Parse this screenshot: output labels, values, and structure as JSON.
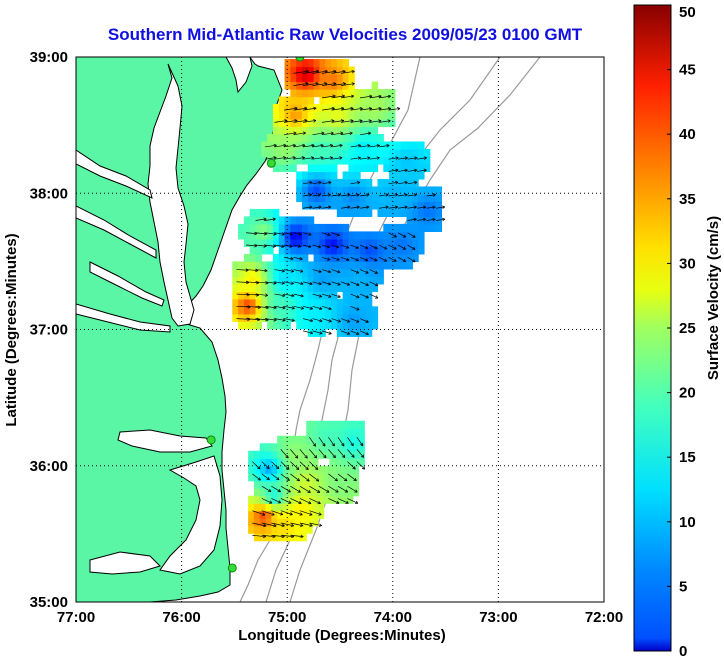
{
  "chart_data": {
    "type": "heatmap",
    "title": "Southern Mid-Atlantic Raw Velocities 2009/05/23 0100 GMT",
    "xlabel": "Longitude (Degrees:Minutes)",
    "ylabel": "Latitude (Degrees:Minutes)",
    "x_ticks": [
      {
        "value": -77,
        "label": "77:00"
      },
      {
        "value": -76,
        "label": "76:00"
      },
      {
        "value": -75,
        "label": "75:00"
      },
      {
        "value": -74,
        "label": "74:00"
      },
      {
        "value": -73,
        "label": "73:00"
      },
      {
        "value": -72,
        "label": "72:00"
      }
    ],
    "y_ticks": [
      {
        "value": 35,
        "label": "35:00"
      },
      {
        "value": 36,
        "label": "36:00"
      },
      {
        "value": 37,
        "label": "37:00"
      },
      {
        "value": 38,
        "label": "38:00"
      },
      {
        "value": 39,
        "label": "39:00"
      }
    ],
    "xlim": [
      -77,
      -72
    ],
    "ylim": [
      35,
      39
    ],
    "grid": "dotted",
    "colorbar": {
      "label": "Surface Velocity (cm/s)",
      "range": [
        0,
        50
      ],
      "ticks": [
        0,
        5,
        10,
        15,
        20,
        25,
        30,
        35,
        40,
        45,
        50
      ],
      "colormap": "jet"
    },
    "colors": {
      "land": "#5af5a5",
      "coastline": "#000000",
      "isobath": "#9a9a9a",
      "station": "#33dd33",
      "title": "#1010e0",
      "grid": "#000000",
      "vectors": "#000000"
    },
    "stations": [
      {
        "lon": -74.88,
        "lat": 39.0
      },
      {
        "lon": -75.15,
        "lat": 38.22
      },
      {
        "lon": -75.72,
        "lat": 36.19
      },
      {
        "lon": -75.52,
        "lat": 35.25
      }
    ],
    "velocity_regions": [
      {
        "region": "northern",
        "samples": [
          {
            "lon": -74.85,
            "lat": 38.85,
            "speed": 46
          },
          {
            "lon": -74.6,
            "lat": 38.8,
            "speed": 38
          },
          {
            "lon": -74.95,
            "lat": 38.55,
            "speed": 36
          },
          {
            "lon": -74.55,
            "lat": 38.55,
            "speed": 30
          },
          {
            "lon": -74.2,
            "lat": 38.6,
            "speed": 27
          },
          {
            "lon": -75.05,
            "lat": 38.3,
            "speed": 26
          },
          {
            "lon": -74.7,
            "lat": 38.3,
            "speed": 22
          },
          {
            "lon": -74.3,
            "lat": 38.3,
            "speed": 18
          },
          {
            "lon": -73.9,
            "lat": 38.2,
            "speed": 16
          },
          {
            "lon": -74.75,
            "lat": 38.0,
            "speed": 10
          },
          {
            "lon": -74.4,
            "lat": 37.95,
            "speed": 13
          },
          {
            "lon": -74.0,
            "lat": 37.95,
            "speed": 15
          },
          {
            "lon": -73.7,
            "lat": 37.85,
            "speed": 12
          },
          {
            "lon": -75.25,
            "lat": 37.7,
            "speed": 25
          },
          {
            "lon": -74.95,
            "lat": 37.65,
            "speed": 6
          },
          {
            "lon": -74.6,
            "lat": 37.6,
            "speed": 7
          },
          {
            "lon": -74.25,
            "lat": 37.55,
            "speed": 10
          },
          {
            "lon": -73.95,
            "lat": 37.6,
            "speed": 12
          },
          {
            "lon": -75.35,
            "lat": 37.35,
            "speed": 32
          },
          {
            "lon": -75.05,
            "lat": 37.35,
            "speed": 17
          },
          {
            "lon": -74.7,
            "lat": 37.35,
            "speed": 14
          },
          {
            "lon": -74.35,
            "lat": 37.35,
            "speed": 15
          },
          {
            "lon": -75.4,
            "lat": 37.15,
            "speed": 40
          },
          {
            "lon": -75.1,
            "lat": 37.15,
            "speed": 22
          },
          {
            "lon": -74.75,
            "lat": 37.1,
            "speed": 18
          },
          {
            "lon": -74.4,
            "lat": 37.05,
            "speed": 14
          }
        ]
      },
      {
        "region": "southern",
        "samples": [
          {
            "lon": -74.65,
            "lat": 36.2,
            "speed": 22
          },
          {
            "lon": -74.4,
            "lat": 36.15,
            "speed": 20
          },
          {
            "lon": -74.95,
            "lat": 36.05,
            "speed": 26
          },
          {
            "lon": -75.2,
            "lat": 35.95,
            "speed": 15
          },
          {
            "lon": -74.85,
            "lat": 35.85,
            "speed": 29
          },
          {
            "lon": -74.55,
            "lat": 35.85,
            "speed": 25
          },
          {
            "lon": -75.15,
            "lat": 35.75,
            "speed": 20
          },
          {
            "lon": -74.9,
            "lat": 35.65,
            "speed": 32
          },
          {
            "lon": -75.25,
            "lat": 35.6,
            "speed": 40
          },
          {
            "lon": -75.05,
            "lat": 35.55,
            "speed": 33
          }
        ]
      }
    ]
  }
}
